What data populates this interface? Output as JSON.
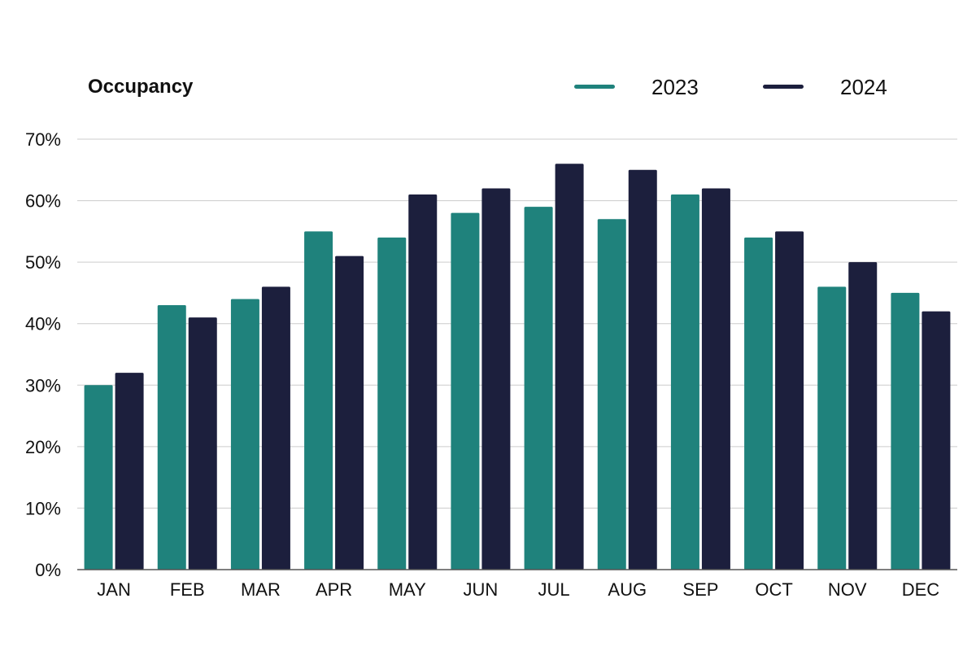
{
  "chart_data": {
    "type": "bar",
    "title": "Occupancy",
    "categories": [
      "JAN",
      "FEB",
      "MAR",
      "APR",
      "MAY",
      "JUN",
      "JUL",
      "AUG",
      "SEP",
      "OCT",
      "NOV",
      "DEC"
    ],
    "series": [
      {
        "name": "2023",
        "color": "#1f827c",
        "values": [
          30,
          43,
          44,
          55,
          54,
          58,
          59,
          57,
          61,
          54,
          46,
          45
        ]
      },
      {
        "name": "2024",
        "color": "#1c1f3d",
        "values": [
          32,
          41,
          46,
          51,
          61,
          62,
          66,
          65,
          62,
          55,
          50,
          42
        ]
      }
    ],
    "yticks": [
      "0%",
      "10%",
      "20%",
      "30%",
      "40%",
      "50%",
      "60%",
      "70%"
    ],
    "ylim": [
      0,
      70
    ],
    "grid": true,
    "legend_position": "top-right",
    "xlabel": "",
    "ylabel": ""
  },
  "colors": {
    "gridline": "#cccccc",
    "axis": "#555555"
  }
}
